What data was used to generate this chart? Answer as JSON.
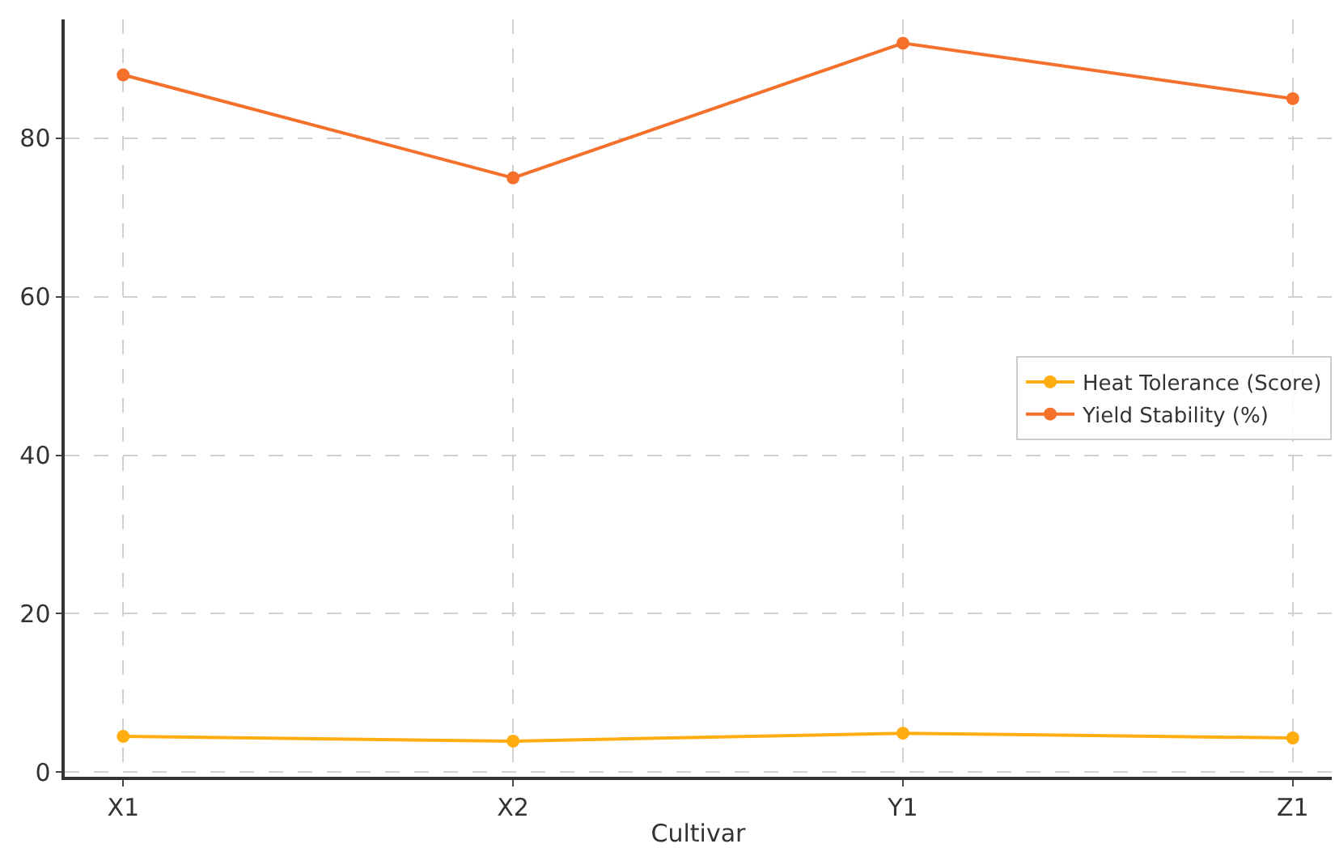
{
  "chart_data": {
    "type": "line",
    "xlabel": "Cultivar",
    "categories": [
      "X1",
      "X2",
      "Y1",
      "Z1"
    ],
    "series": [
      {
        "name": "Heat Tolerance (Score)",
        "color": "#ffad10",
        "values": [
          4.5,
          3.9,
          4.9,
          4.3
        ]
      },
      {
        "name": "Yield Stability (%)",
        "color": "#f4702b",
        "values": [
          88,
          75,
          92,
          85
        ]
      }
    ],
    "ylim": [
      -0.6,
      95
    ],
    "yticks": [
      0,
      20,
      40,
      60,
      80
    ],
    "grid": true,
    "legend": "right",
    "marker": "circle",
    "line_style": "solid"
  }
}
